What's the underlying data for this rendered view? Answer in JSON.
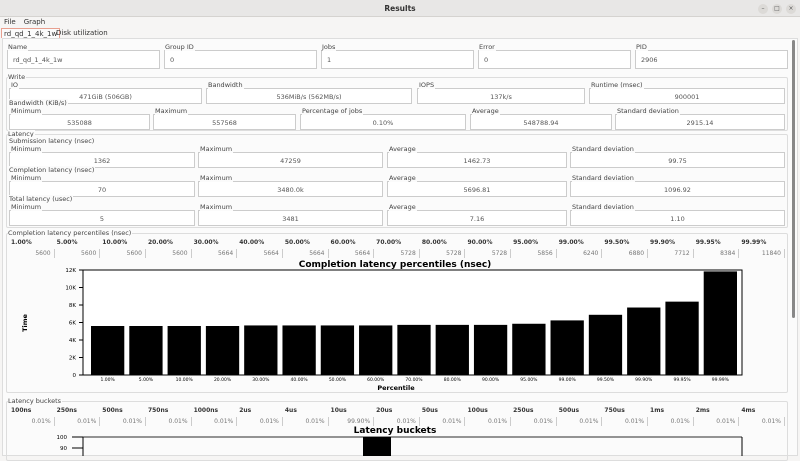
{
  "window": {
    "title": "Results",
    "controls": [
      "minimize",
      "maximize",
      "close"
    ]
  },
  "menu": [
    "File",
    "Graph"
  ],
  "tabs": [
    {
      "label": "rd_qd_1_4k_1w",
      "active": true
    },
    {
      "label": "Disk utilization",
      "active": false
    }
  ],
  "job": [
    {
      "label": "Name",
      "value": "rd_qd_1_4k_1w"
    },
    {
      "label": "Group ID",
      "value": "0"
    },
    {
      "label": "Jobs",
      "value": "1"
    },
    {
      "label": "Error",
      "value": "0"
    },
    {
      "label": "PID",
      "value": "2906"
    }
  ],
  "write": {
    "title": "Write",
    "fields": [
      {
        "label": "IO",
        "value": "471GiB (506GB)"
      },
      {
        "label": "Bandwidth",
        "value": "536MiB/s (562MB/s)"
      },
      {
        "label": "IOPS",
        "value": "137k/s"
      },
      {
        "label": "Runtime (msec)",
        "value": "900001"
      }
    ],
    "bw_title": "Bandwidth (KiB/s)",
    "bw": [
      {
        "label": "Minimum",
        "value": "535088"
      },
      {
        "label": "Maximum",
        "value": "557568"
      },
      {
        "label": "Percentage of jobs",
        "value": "0.10%"
      },
      {
        "label": "Average",
        "value": "548788.94"
      },
      {
        "label": "Standard deviation",
        "value": "2915.14"
      }
    ]
  },
  "latency": {
    "title": "Latency",
    "groups": [
      {
        "title": "Submission latency (nsec)",
        "fields": [
          {
            "label": "Minimum",
            "value": "1362"
          },
          {
            "label": "Maximum",
            "value": "47259"
          },
          {
            "label": "Average",
            "value": "1462.73"
          },
          {
            "label": "Standard deviation",
            "value": "99.75"
          }
        ]
      },
      {
        "title": "Completion latency (nsec)",
        "fields": [
          {
            "label": "Minimum",
            "value": "70"
          },
          {
            "label": "Maximum",
            "value": "3480.0k"
          },
          {
            "label": "Average",
            "value": "5696.81"
          },
          {
            "label": "Standard deviation",
            "value": "1096.92"
          }
        ]
      },
      {
        "title": "Total latency (usec)",
        "fields": [
          {
            "label": "Minimum",
            "value": "5"
          },
          {
            "label": "Maximum",
            "value": "3481"
          },
          {
            "label": "Average",
            "value": "7.16"
          },
          {
            "label": "Standard deviation",
            "value": "1.10"
          }
        ]
      }
    ]
  },
  "percentiles": {
    "title": "Completion latency percentiles (nsec)",
    "headers": [
      "1.00%",
      "5.00%",
      "10.00%",
      "20.00%",
      "30.00%",
      "40.00%",
      "50.00%",
      "60.00%",
      "70.00%",
      "80.00%",
      "90.00%",
      "95.00%",
      "99.00%",
      "99.50%",
      "99.90%",
      "99.95%",
      "99.99%"
    ],
    "values": [
      "5600",
      "5600",
      "5600",
      "5600",
      "5664",
      "5664",
      "5664",
      "5664",
      "5728",
      "5728",
      "5728",
      "5856",
      "6240",
      "6880",
      "7712",
      "8384",
      "11840"
    ]
  },
  "buckets": {
    "title": "Latency buckets",
    "headers": [
      "100ns",
      "250ns",
      "500ns",
      "750ns",
      "1000ns",
      "2us",
      "4us",
      "10us",
      "20us",
      "50us",
      "100us",
      "250us",
      "500us",
      "750us",
      "1ms",
      "2ms",
      "4ms"
    ],
    "values": [
      "0.01%",
      "0.01%",
      "0.01%",
      "0.01%",
      "0.01%",
      "0.01%",
      "0.01%",
      "99.90%",
      "0.01%",
      "0.01%",
      "0.01%",
      "0.01%",
      "0.01%",
      "0.01%",
      "0.01%",
      "0.01%",
      "0.01%"
    ]
  },
  "chart_data": [
    {
      "type": "bar",
      "title": "Completion latency percentiles (nsec)",
      "xlabel": "Percentile",
      "ylabel": "Time",
      "categories": [
        "1.00%",
        "5.00%",
        "10.00%",
        "20.00%",
        "30.00%",
        "40.00%",
        "50.00%",
        "60.00%",
        "70.00%",
        "80.00%",
        "90.00%",
        "95.00%",
        "99.00%",
        "99.50%",
        "99.90%",
        "99.95%",
        "99.99%"
      ],
      "values": [
        5600,
        5600,
        5600,
        5600,
        5664,
        5664,
        5664,
        5664,
        5728,
        5728,
        5728,
        5856,
        6240,
        6880,
        7712,
        8384,
        11840
      ],
      "ylim": [
        0,
        12000
      ],
      "yticks": [
        "0",
        "2K",
        "4K",
        "6K",
        "8K",
        "10K",
        "12K"
      ],
      "color": "#000000"
    },
    {
      "type": "bar",
      "title": "Latency buckets",
      "yticks_visible": [
        "100",
        "90"
      ],
      "ylim": [
        0,
        100
      ],
      "categories": [
        "100ns",
        "250ns",
        "500ns",
        "750ns",
        "1000ns",
        "2us",
        "4us",
        "10us",
        "20us",
        "50us",
        "100us",
        "250us",
        "500us",
        "750us",
        "1ms",
        "2ms",
        "4ms"
      ],
      "values": [
        0.01,
        0.01,
        0.01,
        0.01,
        0.01,
        0.01,
        0.01,
        99.9,
        0.01,
        0.01,
        0.01,
        0.01,
        0.01,
        0.01,
        0.01,
        0.01,
        0.01
      ],
      "color": "#000000"
    }
  ]
}
